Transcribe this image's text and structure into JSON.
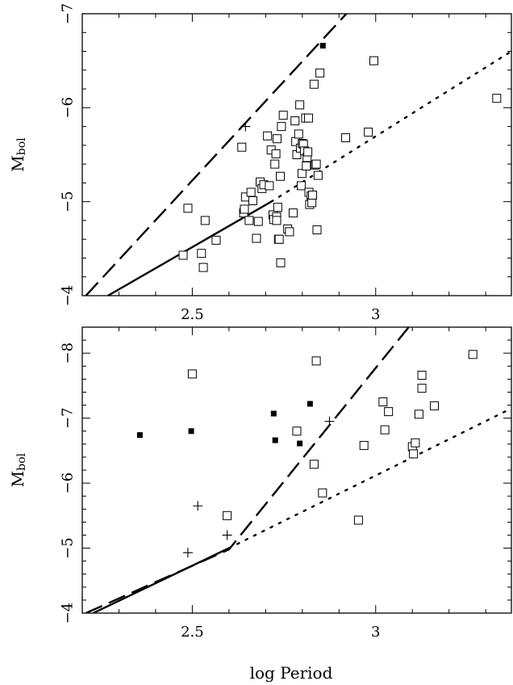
{
  "xlabel": "log Period",
  "chart_data": [
    {
      "type": "scatter",
      "ylabel": "M",
      "ylabel_sub": "bol",
      "xlim": [
        2.2,
        3.37
      ],
      "ylim": [
        -4,
        -7
      ],
      "xticks": [
        {
          "v": 2.5,
          "label": "2.5"
        },
        {
          "v": 3,
          "label": "3"
        }
      ],
      "yticks": [
        {
          "v": -4,
          "label": "−4"
        },
        {
          "v": -5,
          "label": "−5"
        },
        {
          "v": -6,
          "label": "−6"
        },
        {
          "v": -7,
          "label": "−7"
        }
      ],
      "grid": false,
      "series": [
        {
          "marker": "open-square",
          "points": [
            [
              2.475,
              -4.43
            ],
            [
              2.488,
              -4.93
            ],
            [
              2.525,
              -4.45
            ],
            [
              2.53,
              -4.3
            ],
            [
              2.535,
              -4.8
            ],
            [
              2.565,
              -4.59
            ],
            [
              2.635,
              -5.58
            ],
            [
              2.64,
              -4.88
            ],
            [
              2.642,
              -4.92
            ],
            [
              2.645,
              -5.05
            ],
            [
              2.655,
              -4.8
            ],
            [
              2.66,
              -5.1
            ],
            [
              2.665,
              -5.01
            ],
            [
              2.675,
              -4.61
            ],
            [
              2.68,
              -4.79
            ],
            [
              2.685,
              -5.21
            ],
            [
              2.69,
              -5.14
            ],
            [
              2.695,
              -5.18
            ],
            [
              2.705,
              -5.7
            ],
            [
              2.71,
              -5.17
            ],
            [
              2.715,
              -5.55
            ],
            [
              2.72,
              -4.86
            ],
            [
              2.722,
              -4.81
            ],
            [
              2.725,
              -5.4
            ],
            [
              2.728,
              -5.51
            ],
            [
              2.73,
              -4.84
            ],
            [
              2.73,
              -4.8
            ],
            [
              2.731,
              -5.67
            ],
            [
              2.733,
              -4.94
            ],
            [
              2.735,
              -4.6
            ],
            [
              2.737,
              -4.6
            ],
            [
              2.74,
              -5.27
            ],
            [
              2.741,
              -4.35
            ],
            [
              2.743,
              -5.8
            ],
            [
              2.748,
              -5.92
            ],
            [
              2.76,
              -4.71
            ],
            [
              2.765,
              -4.68
            ],
            [
              2.775,
              -4.88
            ],
            [
              2.78,
              -5.86
            ],
            [
              2.782,
              -5.64
            ],
            [
              2.785,
              -5.5
            ],
            [
              2.79,
              -5.72
            ],
            [
              2.793,
              -6.03
            ],
            [
              2.795,
              -5.57
            ],
            [
              2.797,
              -5.17
            ],
            [
              2.799,
              -5.3
            ],
            [
              2.8,
              -5.62
            ],
            [
              2.803,
              -5.61
            ],
            [
              2.806,
              -5.54
            ],
            [
              2.809,
              -5.89
            ],
            [
              2.811,
              -5.38
            ],
            [
              2.813,
              -5.47
            ],
            [
              2.815,
              -5.53
            ],
            [
              2.817,
              -5.89
            ],
            [
              2.818,
              -5.1
            ],
            [
              2.82,
              -4.97
            ],
            [
              2.824,
              -5.06
            ],
            [
              2.826,
              -4.99
            ],
            [
              2.828,
              -5.07
            ],
            [
              2.832,
              -6.25
            ],
            [
              2.835,
              -5.39
            ],
            [
              2.838,
              -5.4
            ],
            [
              2.84,
              -4.7
            ],
            [
              2.843,
              -5.28
            ],
            [
              2.848,
              -6.37
            ],
            [
              2.918,
              -5.68
            ],
            [
              2.98,
              -5.74
            ],
            [
              2.995,
              -6.5
            ],
            [
              3.33,
              -6.1
            ]
          ]
        },
        {
          "marker": "filled-square",
          "points": [
            [
              2.856,
              -6.66
            ]
          ]
        },
        {
          "marker": "plus",
          "points": [
            [
              2.645,
              -5.8
            ]
          ]
        }
      ],
      "lines": [
        {
          "style": "dashed",
          "points": [
            [
              2.21,
              -4.0
            ],
            [
              2.92,
              -7.0
            ]
          ]
        },
        {
          "style": "solid",
          "points": [
            [
              2.27,
              -4.0
            ],
            [
              2.715,
              -5.0
            ]
          ]
        },
        {
          "style": "dotted",
          "points": [
            [
              2.715,
              -5.0
            ],
            [
              3.37,
              -6.6
            ]
          ]
        }
      ]
    },
    {
      "type": "scatter",
      "ylabel": "M",
      "ylabel_sub": "bol",
      "xlim": [
        2.2,
        3.37
      ],
      "ylim": [
        -4,
        -8.4
      ],
      "xticks": [
        {
          "v": 2.5,
          "label": "2.5"
        },
        {
          "v": 3,
          "label": "3"
        }
      ],
      "yticks": [
        {
          "v": -4,
          "label": "−4"
        },
        {
          "v": -5,
          "label": "−5"
        },
        {
          "v": -6,
          "label": "−6"
        },
        {
          "v": -7,
          "label": "−7"
        },
        {
          "v": -8,
          "label": "−8"
        }
      ],
      "grid": false,
      "series": [
        {
          "marker": "open-square",
          "points": [
            [
              2.5,
              -7.68
            ],
            [
              2.595,
              -5.5
            ],
            [
              2.785,
              -6.8
            ],
            [
              2.832,
              -6.29
            ],
            [
              2.838,
              -7.88
            ],
            [
              2.855,
              -5.85
            ],
            [
              2.953,
              -5.43
            ],
            [
              2.968,
              -6.58
            ],
            [
              3.02,
              -7.25
            ],
            [
              3.025,
              -6.82
            ],
            [
              3.035,
              -7.1
            ],
            [
              3.1,
              -6.56
            ],
            [
              3.103,
              -6.45
            ],
            [
              3.108,
              -6.62
            ],
            [
              3.118,
              -7.06
            ],
            [
              3.126,
              -7.46
            ],
            [
              3.126,
              -7.66
            ],
            [
              3.16,
              -7.19
            ],
            [
              3.265,
              -7.98
            ]
          ]
        },
        {
          "marker": "filled-square",
          "points": [
            [
              2.357,
              -6.74
            ],
            [
              2.497,
              -6.8
            ],
            [
              2.722,
              -7.07
            ],
            [
              2.726,
              -6.66
            ],
            [
              2.793,
              -6.61
            ],
            [
              2.821,
              -7.22
            ]
          ]
        },
        {
          "marker": "plus",
          "points": [
            [
              2.488,
              -4.93
            ],
            [
              2.515,
              -5.65
            ],
            [
              2.595,
              -5.2
            ],
            [
              2.874,
              -6.95
            ]
          ]
        }
      ],
      "lines": [
        {
          "style": "dashed",
          "points": [
            [
              2.21,
              -4.0
            ],
            [
              2.6,
              -4.98
            ],
            [
              3.09,
              -8.4
            ]
          ]
        },
        {
          "style": "solid",
          "points": [
            [
              2.23,
              -4.0
            ],
            [
              2.6,
              -5.0
            ]
          ]
        },
        {
          "style": "dotted",
          "points": [
            [
              2.6,
              -5.0
            ],
            [
              3.37,
              -7.15
            ]
          ]
        }
      ]
    }
  ]
}
